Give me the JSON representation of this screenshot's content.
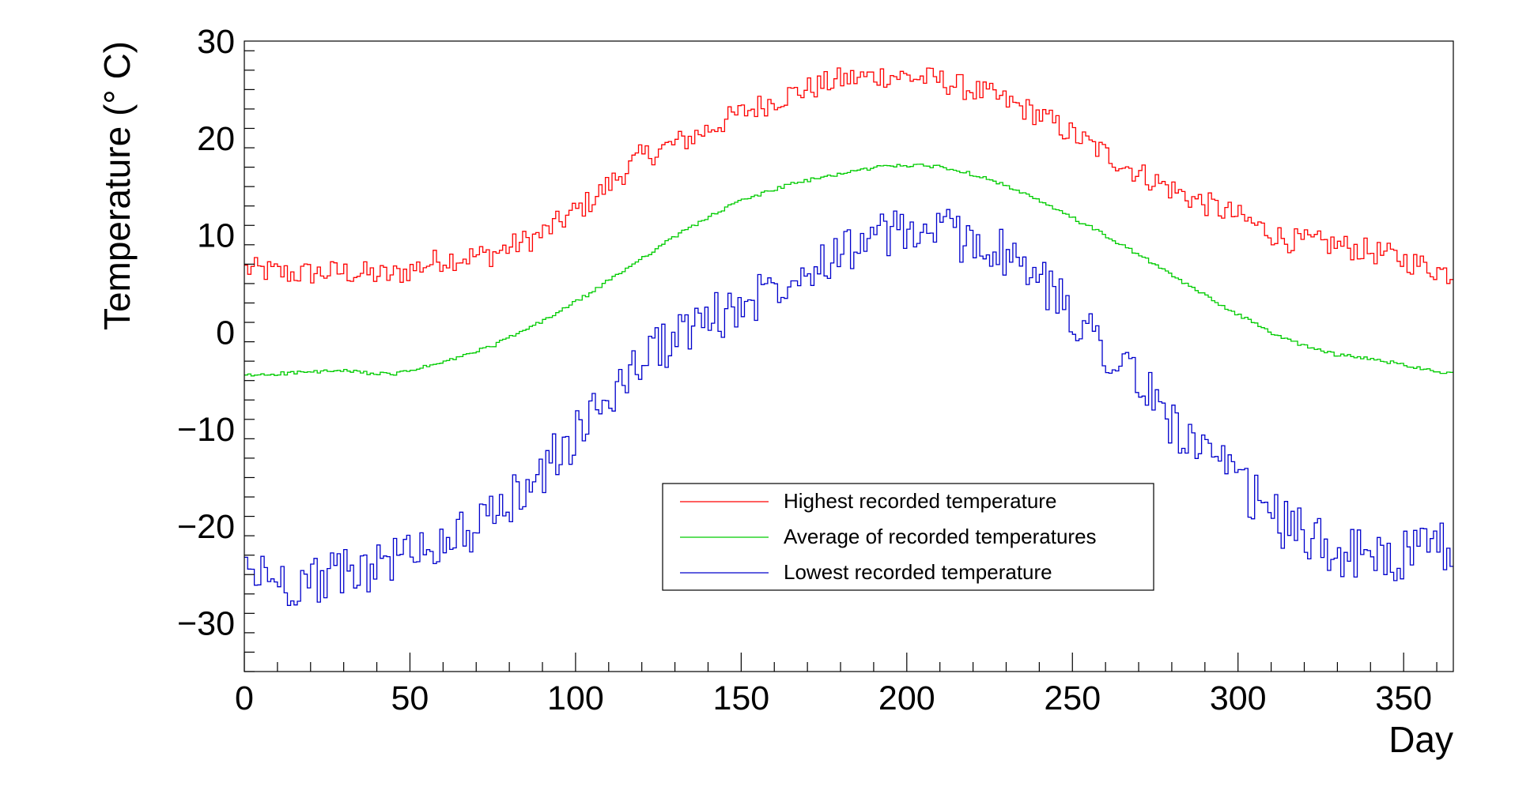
{
  "chart_data": {
    "type": "line",
    "style": "step-histogram",
    "xlabel": "Day",
    "ylabel": "Temperature (° C)",
    "xlim": [
      0,
      365
    ],
    "ylim": [
      -35,
      30
    ],
    "x_ticks": [
      0,
      50,
      100,
      150,
      200,
      250,
      300,
      350
    ],
    "y_ticks": [
      -30,
      -20,
      -10,
      0,
      10,
      20,
      30
    ],
    "x_tick_labels": [
      "0",
      "50",
      "100",
      "150",
      "200",
      "250",
      "300",
      "350"
    ],
    "y_tick_labels": [
      "−30",
      "−20",
      "−10",
      "0",
      "10",
      "20",
      "30"
    ],
    "grid": false,
    "legend_position": "lower-center",
    "x": [
      1,
      15,
      30,
      45,
      60,
      75,
      90,
      105,
      120,
      135,
      150,
      165,
      180,
      195,
      210,
      225,
      240,
      255,
      270,
      285,
      300,
      315,
      330,
      345,
      365
    ],
    "series": [
      {
        "name": "Highest recorded temperature",
        "color": "#ff0000",
        "values": [
          6.5,
          6.0,
          6.2,
          5.8,
          7.5,
          8.0,
          10.0,
          13.5,
          18.0,
          20.0,
          22.5,
          24.5,
          26.0,
          26.5,
          26.0,
          24.5,
          22.5,
          19.5,
          16.5,
          14.0,
          12.0,
          9.5,
          9.0,
          8.0,
          6.0
        ]
      },
      {
        "name": "Average of recorded temperatures",
        "color": "#00cc00",
        "values": [
          -4.5,
          -4.2,
          -4.0,
          -4.4,
          -3.2,
          -1.5,
          1.0,
          4.0,
          7.5,
          10.8,
          13.5,
          15.2,
          16.3,
          17.2,
          17.1,
          15.9,
          13.6,
          11.0,
          8.1,
          4.9,
          1.9,
          -0.8,
          -2.3,
          -3.0,
          -4.3
        ]
      },
      {
        "name": "Lowest recorded temperature",
        "color": "#0000cc",
        "values": [
          -24.5,
          -26.0,
          -25.0,
          -23.5,
          -21.5,
          -19.5,
          -14.5,
          -9.0,
          -3.0,
          0.5,
          2.5,
          6.0,
          8.5,
          10.0,
          10.5,
          9.0,
          5.5,
          0.5,
          -5.0,
          -11.0,
          -15.5,
          -20.0,
          -22.5,
          -23.5,
          -22.0
        ]
      }
    ]
  }
}
